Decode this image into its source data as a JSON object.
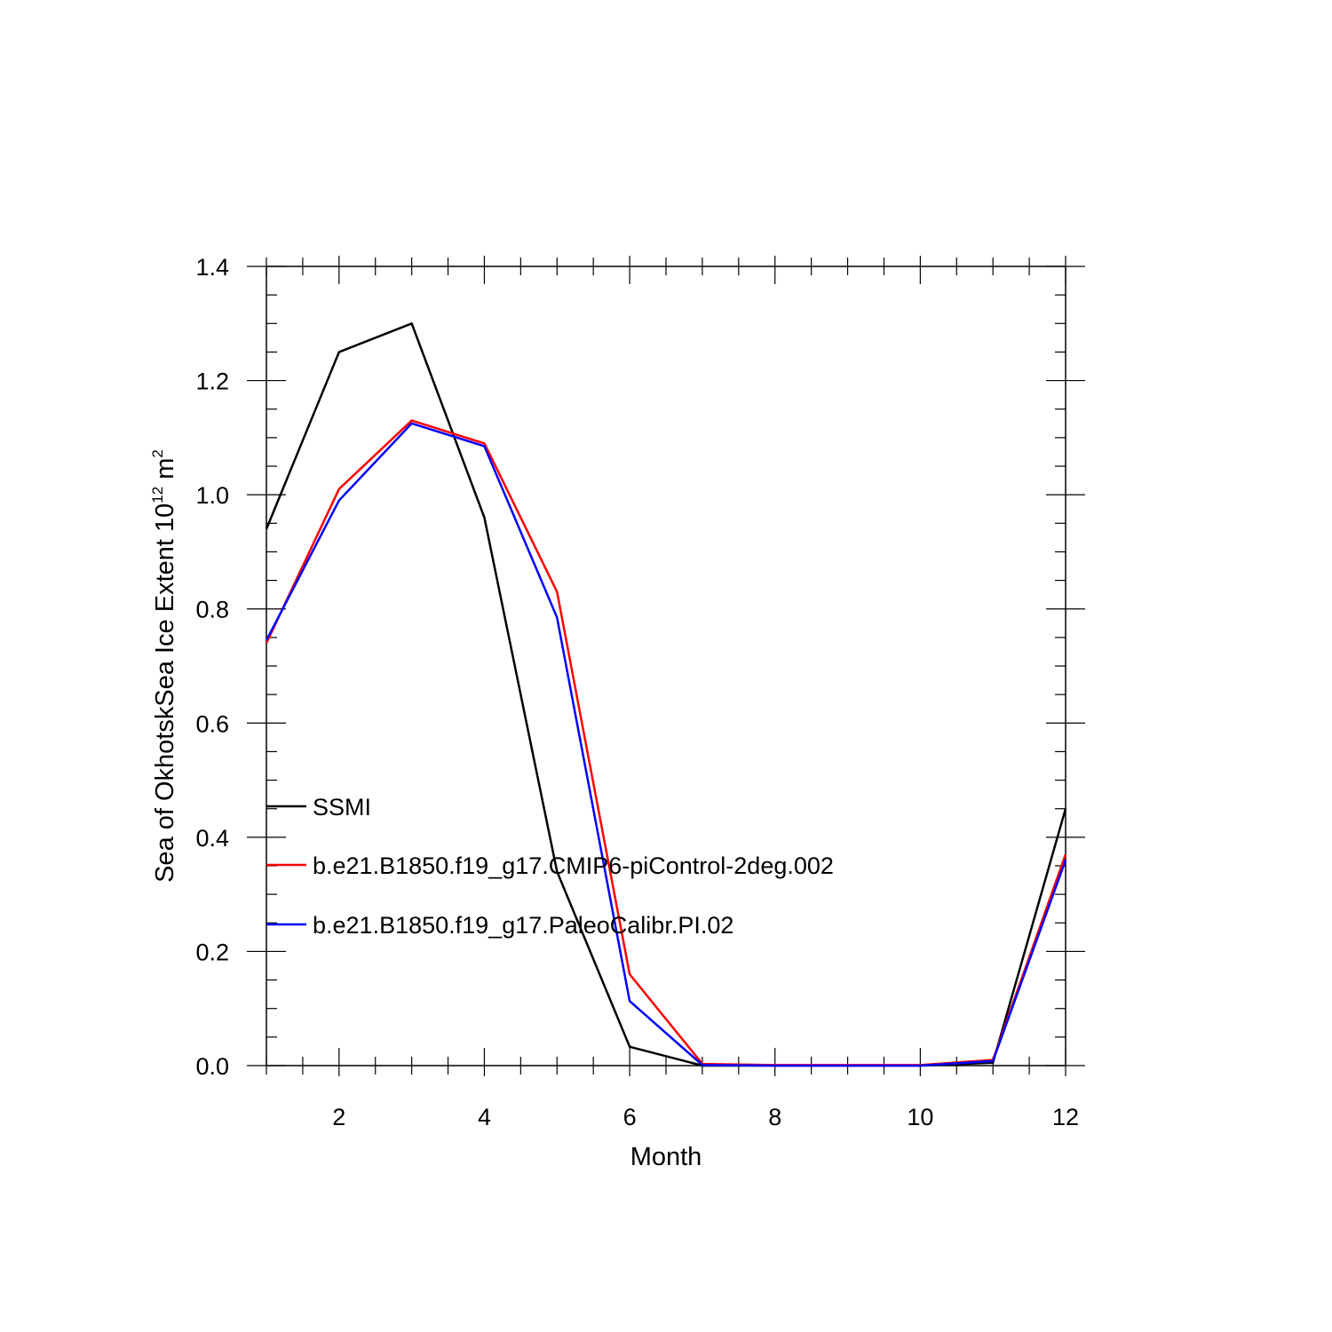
{
  "chart_data": {
    "type": "line",
    "title": "",
    "xlabel": "Month",
    "ylabel": {
      "text": "Sea of OkhotskSea Ice Extent 10",
      "exp1": "12",
      "unit": " m",
      "exp2": "2"
    },
    "xlim": [
      1,
      12
    ],
    "ylim": [
      0.0,
      1.4
    ],
    "x_ticks": [
      2,
      4,
      6,
      8,
      10,
      12
    ],
    "y_ticks": [
      "0.0",
      "0.2",
      "0.4",
      "0.6",
      "0.8",
      "1.0",
      "1.2",
      "1.4"
    ],
    "grid": false,
    "legend_position": "lower-left",
    "x": [
      1,
      2,
      3,
      4,
      5,
      6,
      7,
      8,
      9,
      10,
      11,
      12
    ],
    "series": [
      {
        "name": "SSMI",
        "color": "#000000",
        "values": [
          0.94,
          1.25,
          1.3,
          0.96,
          0.34,
          0.033,
          0.0,
          0.0,
          0.0,
          0.0,
          0.005,
          0.45
        ]
      },
      {
        "name": "b.e21.B1850.f19_g17.CMIP6-piControl-2deg.002",
        "color": "#ff0000",
        "values": [
          0.74,
          1.01,
          1.13,
          1.09,
          0.83,
          0.16,
          0.003,
          0.001,
          0.001,
          0.001,
          0.01,
          0.37
        ]
      },
      {
        "name": "b.e21.B1850.f19_g17.PaleoCalibr.PI.02",
        "color": "#0000ff",
        "values": [
          0.745,
          0.99,
          1.125,
          1.085,
          0.785,
          0.113,
          0.001,
          0.0,
          0.0,
          0.0,
          0.008,
          0.36
        ]
      }
    ]
  }
}
